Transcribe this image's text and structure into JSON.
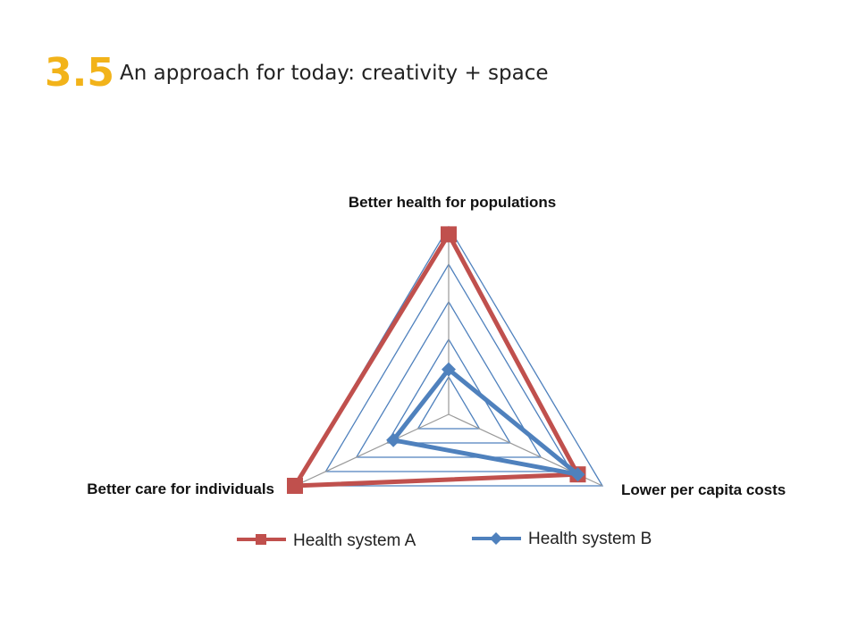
{
  "slide": {
    "number": "3.5",
    "title": "An approach for today: creativity + space"
  },
  "colors": {
    "accent": "#F2B31A",
    "grid_ring": "#4F81BD",
    "spoke": "#999999",
    "series_a": "#C0504D",
    "series_b": "#4F81BD"
  },
  "chart_data": {
    "type": "radar",
    "categories": [
      "Better health for populations",
      "Lower per capita costs",
      "Better care for individuals"
    ],
    "series": [
      {
        "name": "Health system A",
        "values": [
          4.8,
          4.2,
          5.0
        ],
        "marker": "square"
      },
      {
        "name": "Health system B",
        "values": [
          1.2,
          4.2,
          1.8
        ],
        "marker": "diamond"
      }
    ],
    "rlim": [
      0,
      5
    ],
    "grid": true,
    "legend": "bottom"
  }
}
